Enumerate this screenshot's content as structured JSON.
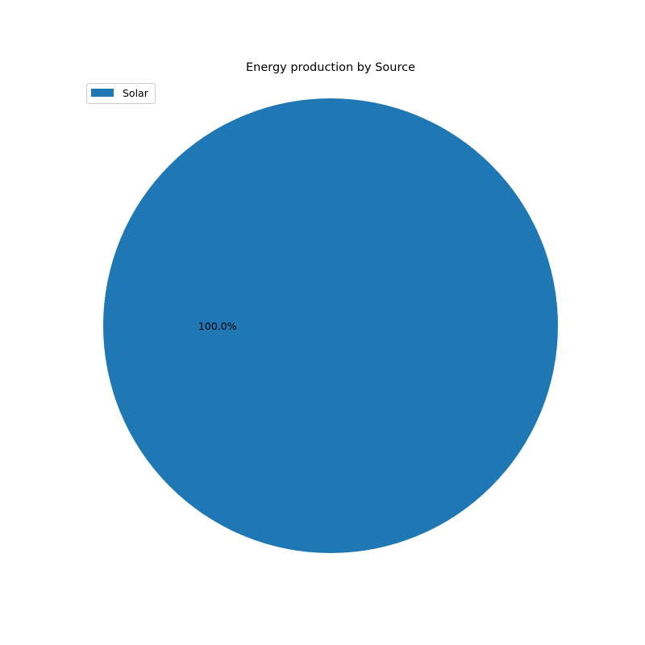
{
  "chart_data": {
    "type": "pie",
    "title": "Energy production by Source",
    "categories": [
      "Solar"
    ],
    "values": [
      100.0
    ],
    "value_labels": [
      "100.0%"
    ],
    "colors": [
      "#1f77b4"
    ],
    "legend": {
      "entries": [
        "Solar"
      ],
      "placement": "upper-left"
    }
  }
}
